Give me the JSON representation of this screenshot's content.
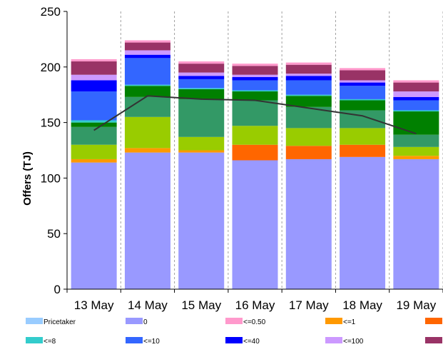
{
  "chart_data": {
    "type": "bar",
    "stacked": true,
    "ylabel": "Offers (TJ)",
    "ylim": [
      0,
      250
    ],
    "yticks": [
      0,
      50,
      100,
      150,
      200,
      250
    ],
    "categories": [
      "13 May",
      "14 May",
      "15 May",
      "16 May",
      "17 May",
      "18 May",
      "19 May"
    ],
    "series": [
      {
        "name": "Pricetaker",
        "color": "#99CCFF",
        "values": [
          0,
          0,
          0,
          0,
          0,
          0,
          0
        ]
      },
      {
        "name": "0",
        "color": "#9999FF",
        "values": [
          114,
          123,
          123,
          116,
          117,
          119,
          117
        ]
      },
      {
        "name": "<=0.50",
        "color": "#FF99CC",
        "values": [
          0,
          0,
          0,
          0,
          0,
          0,
          0
        ]
      },
      {
        "name": "<=1",
        "color": "#FF9900",
        "values": [
          3,
          4,
          2,
          0,
          0,
          0,
          3
        ]
      },
      {
        "name": "",
        "color": "#FF6600",
        "values": [
          0,
          0,
          0,
          14,
          12,
          11,
          0
        ]
      },
      {
        "name": "",
        "color": "#99CC00",
        "values": [
          13,
          28,
          12,
          17,
          16,
          15,
          8
        ]
      },
      {
        "name": "",
        "color": "#339966",
        "values": [
          16,
          18,
          34,
          23,
          19,
          16,
          11
        ]
      },
      {
        "name": "",
        "color": "#008000",
        "values": [
          4,
          10,
          9,
          8,
          10,
          9,
          21
        ]
      },
      {
        "name": "<=8",
        "color": "#33CCCC",
        "values": [
          2,
          1,
          1,
          1,
          1,
          1,
          1
        ]
      },
      {
        "name": "<=10",
        "color": "#3366FF",
        "values": [
          26,
          24,
          8,
          9,
          13,
          12,
          9
        ]
      },
      {
        "name": "<=40",
        "color": "#0000FF",
        "values": [
          10,
          3,
          3,
          3,
          4,
          3,
          3
        ]
      },
      {
        "name": "<=100",
        "color": "#CC99FF",
        "values": [
          5,
          4,
          3,
          2,
          2,
          2,
          5
        ]
      },
      {
        "name": "",
        "color": "#993366",
        "values": [
          12,
          7,
          8,
          8,
          8,
          9,
          8
        ]
      },
      {
        "name": "",
        "color": "#FF99CC",
        "values": [
          2,
          2,
          2,
          2,
          2,
          2,
          2
        ]
      }
    ],
    "line": {
      "color": "#333333",
      "values": [
        143,
        174,
        171,
        170,
        163,
        156,
        140
      ]
    },
    "legend": {
      "position": "bottom",
      "items": [
        {
          "label": "Pricetaker",
          "color": "#99CCFF"
        },
        {
          "label": "0",
          "color": "#9999FF"
        },
        {
          "label": "<=0.50",
          "color": "#FF99CC"
        },
        {
          "label": "<=1",
          "color": "#FF9900"
        },
        {
          "label": "",
          "color": "#FF6600"
        },
        {
          "label": "<=8",
          "color": "#33CCCC"
        },
        {
          "label": "<=10",
          "color": "#3366FF"
        },
        {
          "label": "<=40",
          "color": "#0000FF"
        },
        {
          "label": "<=100",
          "color": "#CC99FF"
        },
        {
          "label": "",
          "color": "#993366"
        }
      ]
    },
    "grid": "vertical-dashed"
  }
}
